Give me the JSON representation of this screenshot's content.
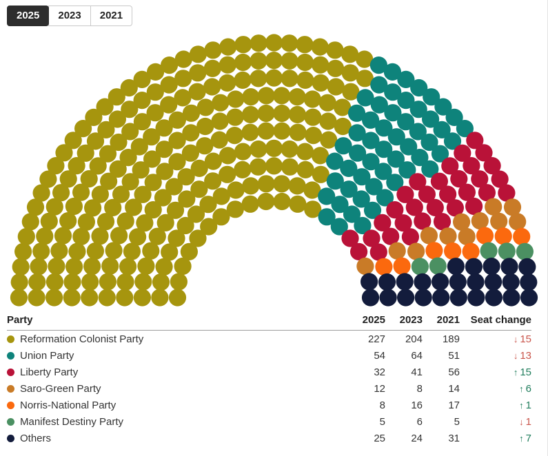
{
  "tabs": [
    {
      "label": "2025",
      "active": true
    },
    {
      "label": "2023",
      "active": false
    },
    {
      "label": "2021",
      "active": false
    }
  ],
  "chart_data": {
    "type": "parliament",
    "total_seats": 363,
    "rows": 10,
    "selected_year": "2025",
    "parties": [
      {
        "name": "Reformation Colonist Party",
        "seats": 227,
        "color": "#a6950e"
      },
      {
        "name": "Union Party",
        "seats": 54,
        "color": "#0e837b"
      },
      {
        "name": "Liberty Party",
        "seats": 32,
        "color": "#b91238"
      },
      {
        "name": "Saro-Green Party",
        "seats": 12,
        "color": "#c97b27"
      },
      {
        "name": "Norris-National Party",
        "seats": 8,
        "color": "#fb690e"
      },
      {
        "name": "Manifest Destiny Party",
        "seats": 5,
        "color": "#4b9062"
      },
      {
        "name": "Others",
        "seats": 25,
        "color": "#131c3c"
      }
    ]
  },
  "table": {
    "columns": {
      "party": "Party",
      "y2025": "2025",
      "y2023": "2023",
      "y2021": "2021",
      "change": "Seat change"
    },
    "rows": [
      {
        "party": "Reformation Colonist Party",
        "color": "#a6950e",
        "y2025": "227",
        "y2023": "204",
        "y2021": "189",
        "change": {
          "dir": "down",
          "value": "15"
        }
      },
      {
        "party": "Union Party",
        "color": "#0e837b",
        "y2025": "54",
        "y2023": "64",
        "y2021": "51",
        "change": {
          "dir": "down",
          "value": "13"
        }
      },
      {
        "party": "Liberty Party",
        "color": "#b91238",
        "y2025": "32",
        "y2023": "41",
        "y2021": "56",
        "change": {
          "dir": "up",
          "value": "15"
        }
      },
      {
        "party": "Saro-Green Party",
        "color": "#c97b27",
        "y2025": "12",
        "y2023": "8",
        "y2021": "14",
        "change": {
          "dir": "up",
          "value": "6"
        }
      },
      {
        "party": "Norris-National Party",
        "color": "#fb690e",
        "y2025": "8",
        "y2023": "16",
        "y2021": "17",
        "change": {
          "dir": "up",
          "value": "1"
        }
      },
      {
        "party": "Manifest Destiny Party",
        "color": "#4b9062",
        "y2025": "5",
        "y2023": "6",
        "y2021": "5",
        "change": {
          "dir": "down",
          "value": "1"
        }
      },
      {
        "party": "Others",
        "color": "#131c3c",
        "y2025": "25",
        "y2023": "24",
        "y2021": "31",
        "change": {
          "dir": "up",
          "value": "7"
        }
      }
    ]
  },
  "colors": {
    "change_up": "#1e7c5b",
    "change_down": "#c9544a"
  },
  "icons": {
    "up_arrow": "↑",
    "down_arrow": "↓"
  }
}
